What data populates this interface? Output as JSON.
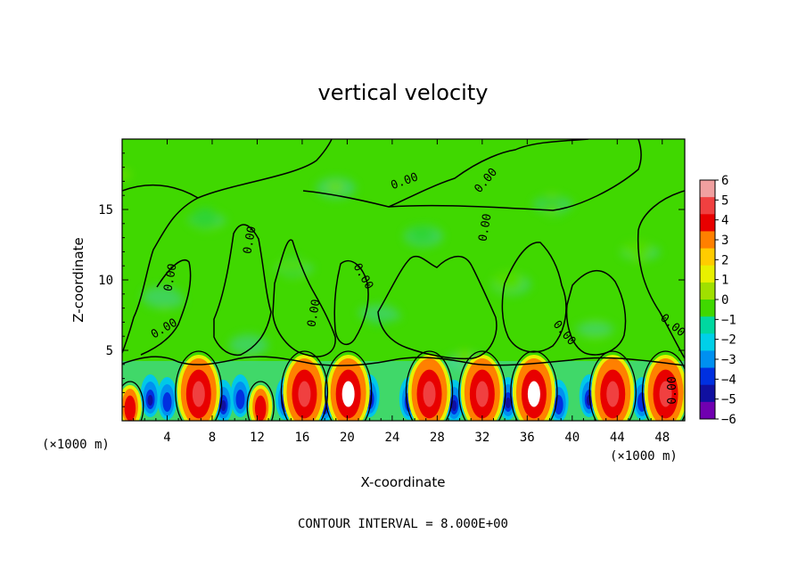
{
  "chart_data": {
    "type": "heatmap",
    "title": "vertical velocity",
    "xlabel": "X-coordinate",
    "ylabel": "Z-coordinate",
    "x_unit": "(×1000 m)",
    "x_unit_right": "(×1000 m)",
    "xlim": [
      0,
      50
    ],
    "ylim": [
      0,
      20
    ],
    "x_ticks": [
      4,
      8,
      12,
      16,
      20,
      24,
      28,
      32,
      36,
      40,
      44,
      48
    ],
    "y_ticks": [
      5,
      10,
      15
    ],
    "contour_interval_text": "CONTOUR INTERVAL = 8.000E+00",
    "contour_label": "0.00",
    "colorbar": {
      "levels": [
        6,
        5,
        4,
        3,
        2,
        1,
        0,
        -1,
        -2,
        -3,
        -4,
        -5,
        -6
      ],
      "labels": [
        "6",
        "5",
        "4",
        "3",
        "2",
        "1",
        "0",
        "−1",
        "−2",
        "−3",
        "−4",
        "−5",
        "−6"
      ],
      "colors": [
        "#f0a0a0",
        "#f04040",
        "#e80000",
        "#ff8000",
        "#ffcc00",
        "#e8f000",
        "#a0e000",
        "#40d800",
        "#00d8a0",
        "#00d0e8",
        "#0090f0",
        "#0030e0",
        "#1010a0",
        "#7000b0"
      ]
    },
    "updrafts_x": [
      0.7,
      6.8,
      12.3,
      16.2,
      20.1,
      27.3,
      32.0,
      36.6,
      43.6,
      48.3
    ],
    "downdrafts_x": [
      2.5,
      4.0,
      9.0,
      10.5,
      14.5,
      18.0,
      22.0,
      25.5,
      29.5,
      30.8,
      34.3,
      38.8,
      41.5,
      46.2
    ],
    "background_color": "#40d800"
  }
}
